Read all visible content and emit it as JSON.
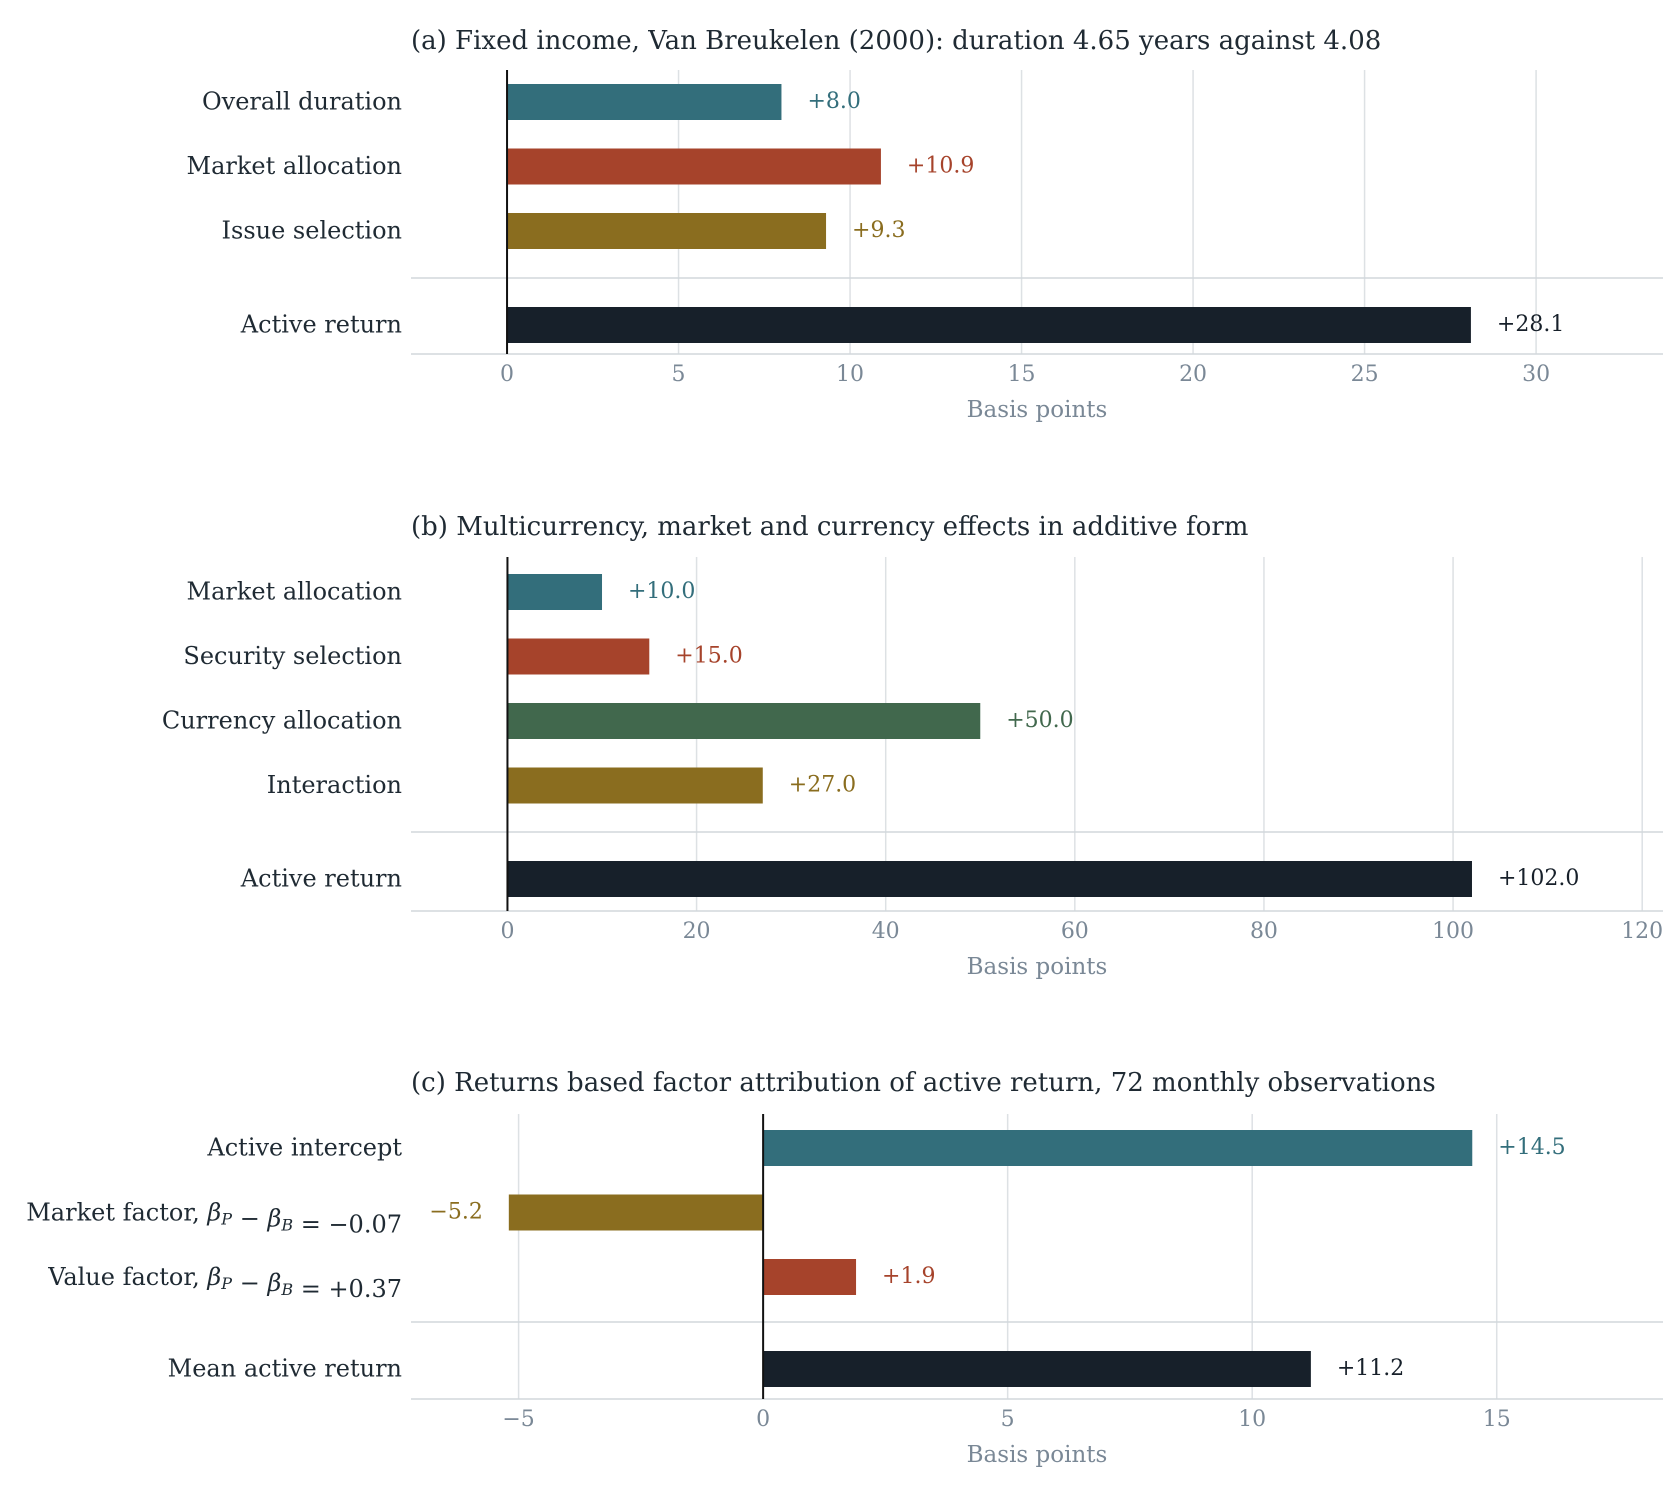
{
  "chart_data": [
    {
      "type": "bar",
      "orientation": "horizontal",
      "title": "(a) Fixed income, Van Breukelen (2000): duration 4.65 years against 4.08",
      "xlabel": "Basis points",
      "xlim": [
        -2.8,
        33.7
      ],
      "xticks": [
        0,
        5,
        10,
        15,
        20,
        25,
        30
      ],
      "tick_labels": [
        "0",
        "5",
        "10",
        "15",
        "20",
        "25",
        "30"
      ],
      "grid": true,
      "components": [
        {
          "label": "Overall duration",
          "value": 8.0,
          "value_label": "+8.0",
          "color": "#336e7b"
        },
        {
          "label": "Market allocation",
          "value": 10.9,
          "value_label": "+10.9",
          "color": "#a6432b"
        },
        {
          "label": "Issue selection",
          "value": 9.3,
          "value_label": "+9.3",
          "color": "#8a6d1f"
        }
      ],
      "total": {
        "label": "Active return",
        "value": 28.1,
        "value_label": "+28.1",
        "color": "#17202a"
      }
    },
    {
      "type": "bar",
      "orientation": "horizontal",
      "title": "(b) Multicurrency, market and currency effects in additive form",
      "xlabel": "Basis points",
      "xlim": [
        -10.2,
        122.2
      ],
      "xticks": [
        0,
        20,
        40,
        60,
        80,
        100,
        120
      ],
      "tick_labels": [
        "0",
        "20",
        "40",
        "60",
        "80",
        "100",
        "120"
      ],
      "grid": true,
      "components": [
        {
          "label": "Market allocation",
          "value": 10.0,
          "value_label": "+10.0",
          "color": "#336e7b"
        },
        {
          "label": "Security selection",
          "value": 15.0,
          "value_label": "+15.0",
          "color": "#a6432b"
        },
        {
          "label": "Currency allocation",
          "value": 50.0,
          "value_label": "+50.0",
          "color": "#41684d"
        },
        {
          "label": "Interaction",
          "value": 27.0,
          "value_label": "+27.0",
          "color": "#8a6d1f"
        }
      ],
      "total": {
        "label": "Active return",
        "value": 102.0,
        "value_label": "+102.0",
        "color": "#17202a"
      }
    },
    {
      "type": "bar",
      "orientation": "horizontal",
      "title": "(c) Returns based factor attribution of active return, 72 monthly observations",
      "xlabel": "Basis points",
      "xlim": [
        -7.2,
        18.4
      ],
      "xticks": [
        -5,
        0,
        5,
        10,
        15
      ],
      "tick_labels": [
        "−5",
        "0",
        "5",
        "10",
        "15"
      ],
      "grid": true,
      "components": [
        {
          "label": "Active intercept",
          "value": 14.5,
          "value_label": "+14.5",
          "color": "#336e7b"
        },
        {
          "label": "Market factor, βP − βB = −0.07",
          "value": -5.2,
          "value_label": "−5.2",
          "color": "#8a6d1f"
        },
        {
          "label": "Value factor, βP − βB = +0.37",
          "value": 1.9,
          "value_label": "+1.9",
          "color": "#a6432b"
        }
      ],
      "total": {
        "label": "Mean active return",
        "value": 11.2,
        "value_label": "+11.2",
        "color": "#17202a"
      }
    }
  ]
}
